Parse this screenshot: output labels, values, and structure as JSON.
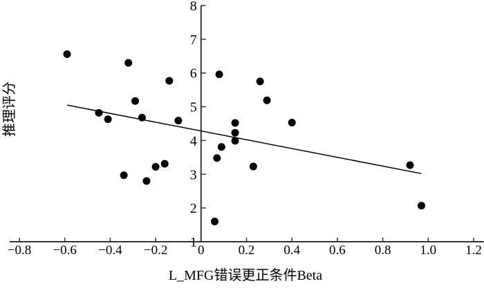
{
  "chart_data": {
    "type": "scatter",
    "title": "",
    "xlabel": "L_MFG错误更正条件Beta",
    "ylabel": "推理评分",
    "xlim": [
      -0.8,
      1.2
    ],
    "ylim": [
      1,
      8
    ],
    "xticks": [
      "-0.8",
      "-0.6",
      "-0.4",
      "-0.2",
      "0",
      "0.2",
      "0.4",
      "0.6",
      "0.8",
      "1.0",
      "1.2"
    ],
    "yticks": [
      "1",
      "2",
      "3",
      "4",
      "5",
      "6",
      "7",
      "8"
    ],
    "grid": false,
    "legend": "none",
    "point_color": "#000000",
    "points": [
      {
        "x": -0.59,
        "y": 6.56
      },
      {
        "x": -0.45,
        "y": 4.82
      },
      {
        "x": -0.41,
        "y": 4.63
      },
      {
        "x": -0.32,
        "y": 6.3
      },
      {
        "x": -0.29,
        "y": 5.17
      },
      {
        "x": -0.34,
        "y": 2.97
      },
      {
        "x": -0.26,
        "y": 4.68
      },
      {
        "x": -0.24,
        "y": 2.8
      },
      {
        "x": -0.2,
        "y": 3.22
      },
      {
        "x": -0.16,
        "y": 3.31
      },
      {
        "x": -0.14,
        "y": 5.77
      },
      {
        "x": -0.1,
        "y": 4.59
      },
      {
        "x": 0.08,
        "y": 5.96
      },
      {
        "x": 0.06,
        "y": 1.6
      },
      {
        "x": 0.07,
        "y": 3.48
      },
      {
        "x": 0.09,
        "y": 3.81
      },
      {
        "x": 0.15,
        "y": 4.52
      },
      {
        "x": 0.15,
        "y": 4.23
      },
      {
        "x": 0.15,
        "y": 3.99
      },
      {
        "x": 0.23,
        "y": 3.23
      },
      {
        "x": 0.26,
        "y": 5.75
      },
      {
        "x": 0.29,
        "y": 5.19
      },
      {
        "x": 0.4,
        "y": 4.53
      },
      {
        "x": 0.92,
        "y": 3.27
      },
      {
        "x": 0.97,
        "y": 2.07
      }
    ],
    "regression_line": {
      "x": [
        -0.59,
        0.97
      ],
      "y": [
        5.05,
        3.02
      ]
    }
  }
}
